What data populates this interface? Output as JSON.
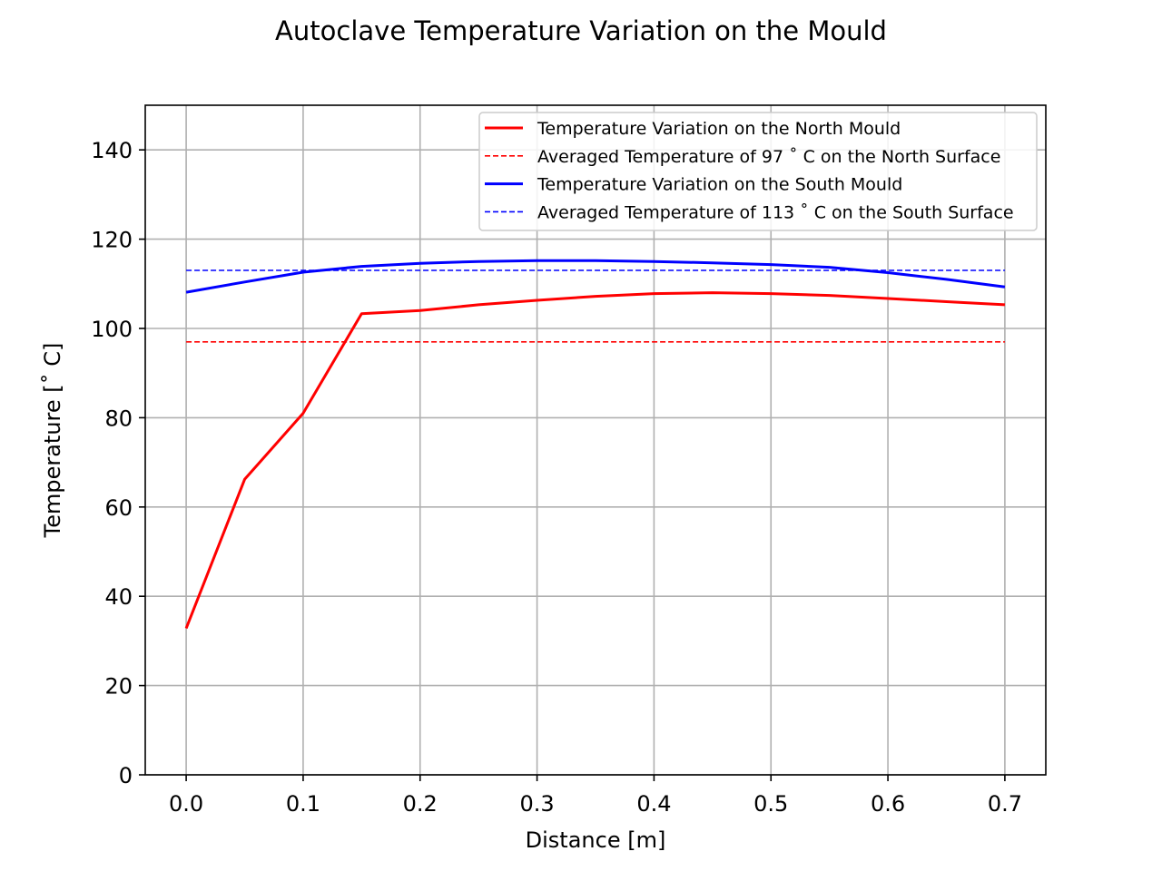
{
  "chart_data": {
    "type": "line",
    "title": "Autoclave Temperature Variation on the Mould",
    "xlabel": "Distance [m]",
    "ylabel": "Temperature [˚ C]",
    "xlim": [
      -0.035,
      0.735
    ],
    "ylim": [
      0,
      150
    ],
    "xticks": [
      "0.0",
      "0.1",
      "0.2",
      "0.3",
      "0.4",
      "0.5",
      "0.6",
      "0.7"
    ],
    "yticks": [
      "0",
      "20",
      "40",
      "60",
      "80",
      "100",
      "120",
      "140"
    ],
    "grid": true,
    "legend_position": "top-right",
    "series": [
      {
        "name": "Temperature Variation on the North Mould",
        "color": "#ff0000",
        "style": "solid",
        "x": [
          0.0,
          0.05,
          0.1,
          0.15,
          0.2,
          0.25,
          0.3,
          0.35,
          0.4,
          0.45,
          0.5,
          0.55,
          0.6,
          0.65,
          0.7
        ],
        "y": [
          32.8,
          66.2,
          81.0,
          103.3,
          104.0,
          105.3,
          106.3,
          107.2,
          107.8,
          108.0,
          107.8,
          107.4,
          106.7,
          106.0,
          105.3
        ]
      },
      {
        "name": "Averaged Temperature of 97 ˚ C on the North Surface",
        "color": "#ff0000",
        "style": "dashed",
        "x": [
          0.0,
          0.7
        ],
        "y": [
          97,
          97
        ]
      },
      {
        "name": "Temperature Variation on the South Mould",
        "color": "#0000ff",
        "style": "solid",
        "x": [
          0.0,
          0.05,
          0.1,
          0.15,
          0.2,
          0.25,
          0.3,
          0.35,
          0.4,
          0.45,
          0.5,
          0.55,
          0.6,
          0.65,
          0.7
        ],
        "y": [
          108.1,
          110.4,
          112.6,
          113.9,
          114.6,
          115.0,
          115.2,
          115.2,
          115.0,
          114.7,
          114.3,
          113.7,
          112.5,
          111.0,
          109.3
        ]
      },
      {
        "name": "Averaged Temperature of 113 ˚ C on the South Surface",
        "color": "#0000ff",
        "style": "dashed",
        "x": [
          0.0,
          0.7
        ],
        "y": [
          113,
          113
        ]
      }
    ]
  }
}
